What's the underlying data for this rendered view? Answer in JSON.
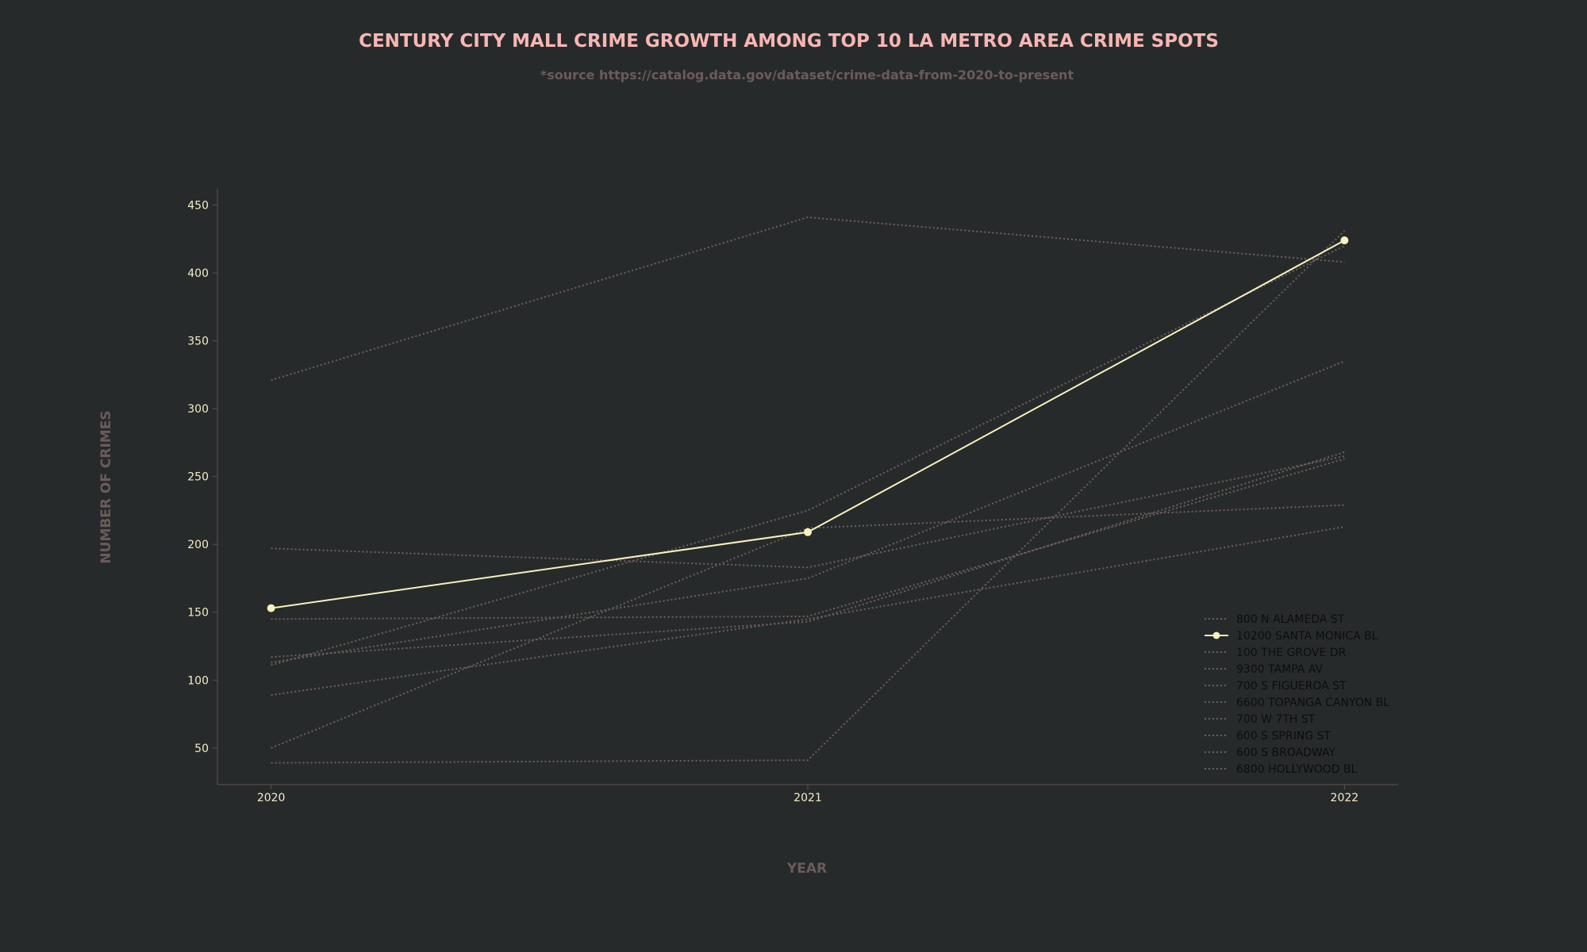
{
  "colors": {
    "background": "#272a2b",
    "title": "#f7b6b3",
    "muted_text": "#6b5b5b",
    "axis_line": "#5e5151",
    "tick_text": "#f4ecc5",
    "highlight": "#f8f1bc",
    "dim_series": "#6f5f5f",
    "legend_text": "#0d0d0d"
  },
  "chart_data": {
    "type": "line",
    "title": "CENTURY CITY MALL CRIME GROWTH AMONG TOP 10 LA METRO AREA CRIME SPOTS",
    "subtitle": "*source https://catalog.data.gov/dataset/crime-data-from-2020-to-present",
    "xlabel": "YEAR",
    "ylabel": "NUMBER OF CRIMES",
    "x": [
      2020,
      2021,
      2022
    ],
    "x_tick_labels": [
      "2020",
      "2021",
      "2022"
    ],
    "y_ticks": [
      50,
      100,
      150,
      200,
      250,
      300,
      350,
      400,
      450
    ],
    "xlim": [
      2019.9,
      2022.1
    ],
    "ylim": [
      23,
      462
    ],
    "grid": false,
    "legend_position": "lower-right",
    "highlight_series": "10200 SANTA MONICA BL",
    "series": [
      {
        "name": "800 N ALAMEDA ST",
        "values": [
          321,
          441,
          408
        ]
      },
      {
        "name": "10200 SANTA MONICA BL",
        "values": [
          153,
          209,
          424
        ]
      },
      {
        "name": "100 THE GROVE DR",
        "values": [
          111,
          225,
          420
        ]
      },
      {
        "name": "9300 TAMPA AV",
        "values": [
          50,
          212,
          229
        ]
      },
      {
        "name": "700 S FIGUEROA ST",
        "values": [
          197,
          183,
          265
        ]
      },
      {
        "name": "6600 TOPANGA CANYON BL",
        "values": [
          113,
          175,
          335
        ]
      },
      {
        "name": "700 W 7TH ST",
        "values": [
          89,
          145,
          213
        ]
      },
      {
        "name": "600 S SPRING ST",
        "values": [
          145,
          147,
          263
        ]
      },
      {
        "name": "600 S BROADWAY",
        "values": [
          117,
          143,
          268
        ]
      },
      {
        "name": "6800 HOLLYWOOD BL",
        "values": [
          39,
          41,
          431
        ]
      }
    ]
  }
}
